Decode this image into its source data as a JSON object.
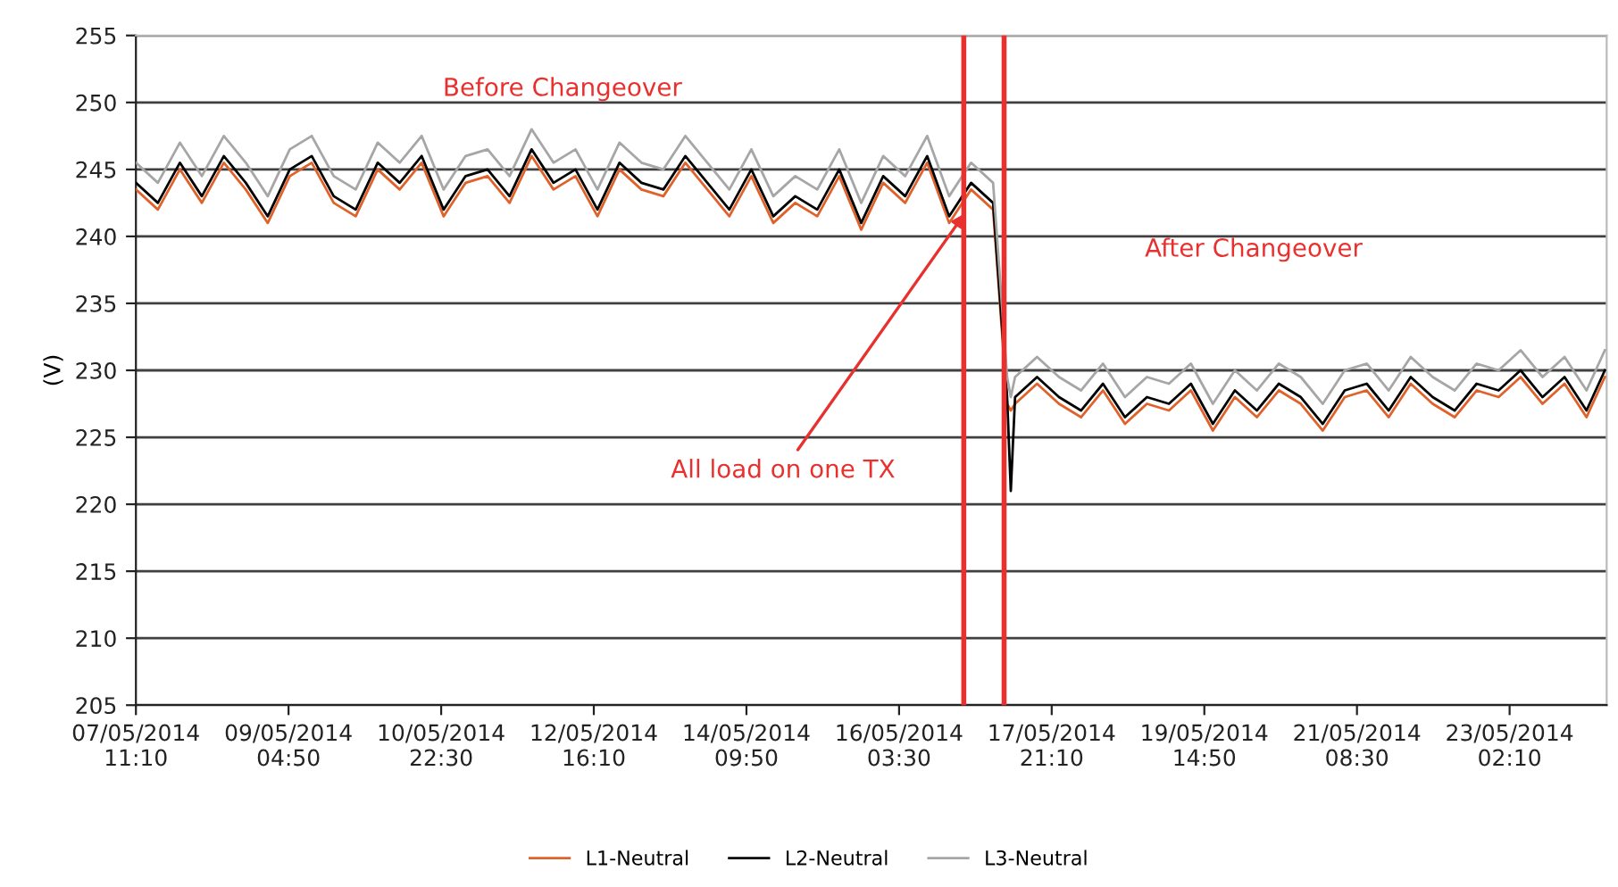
{
  "chart_data": {
    "type": "line",
    "ylabel": "(V)",
    "x": [
      "2014-05-07T11:10",
      "2014-05-07T17:10",
      "2014-05-07T23:10",
      "2014-05-08T05:10",
      "2014-05-08T11:10",
      "2014-05-08T17:10",
      "2014-05-08T23:10",
      "2014-05-09T05:10",
      "2014-05-09T11:10",
      "2014-05-09T17:10",
      "2014-05-09T23:10",
      "2014-05-10T05:10",
      "2014-05-10T11:10",
      "2014-05-10T17:10",
      "2014-05-10T23:10",
      "2014-05-11T05:10",
      "2014-05-11T11:10",
      "2014-05-11T17:10",
      "2014-05-11T23:10",
      "2014-05-12T05:10",
      "2014-05-12T11:10",
      "2014-05-12T17:10",
      "2014-05-12T23:10",
      "2014-05-13T05:10",
      "2014-05-13T11:10",
      "2014-05-13T17:10",
      "2014-05-13T23:10",
      "2014-05-14T05:10",
      "2014-05-14T11:10",
      "2014-05-14T17:10",
      "2014-05-14T23:10",
      "2014-05-15T05:10",
      "2014-05-15T11:10",
      "2014-05-15T17:10",
      "2014-05-15T23:10",
      "2014-05-16T05:10",
      "2014-05-16T11:10",
      "2014-05-16T17:10",
      "2014-05-16T23:10",
      "2014-05-17T05:10",
      "2014-05-17T09:00",
      "2014-05-17T10:00",
      "2014-05-17T11:10",
      "2014-05-17T17:10",
      "2014-05-17T23:10",
      "2014-05-18T05:10",
      "2014-05-18T11:10",
      "2014-05-18T17:10",
      "2014-05-18T23:10",
      "2014-05-19T05:10",
      "2014-05-19T11:10",
      "2014-05-19T17:10",
      "2014-05-19T23:10",
      "2014-05-20T05:10",
      "2014-05-20T11:10",
      "2014-05-20T17:10",
      "2014-05-20T23:10",
      "2014-05-21T05:10",
      "2014-05-21T11:10",
      "2014-05-21T17:10",
      "2014-05-21T23:10",
      "2014-05-22T05:10",
      "2014-05-22T11:10",
      "2014-05-22T17:10",
      "2014-05-22T23:10",
      "2014-05-23T05:10",
      "2014-05-23T11:10",
      "2014-05-23T17:10",
      "2014-05-23T23:10",
      "2014-05-24T04:10"
    ],
    "series": [
      {
        "name": "L1-Neutral",
        "color": "#e0622a",
        "values": [
          243.5,
          242,
          245,
          242.5,
          245.5,
          243.5,
          241,
          244.5,
          245.5,
          242.5,
          241.5,
          245,
          243.5,
          245.5,
          241.5,
          244,
          244.5,
          242.5,
          246,
          243.5,
          244.5,
          241.5,
          245,
          243.5,
          243,
          245.5,
          243.5,
          241.5,
          244.5,
          241,
          242.5,
          241.5,
          244.5,
          240.5,
          244,
          242.5,
          245.5,
          241,
          243.5,
          242,
          227.5,
          227,
          227.5,
          229,
          227.5,
          226.5,
          228.5,
          226,
          227.5,
          227,
          228.5,
          225.5,
          228,
          226.5,
          228.5,
          227.5,
          225.5,
          228,
          228.5,
          226.5,
          229,
          227.5,
          226.5,
          228.5,
          228,
          229.5,
          227.5,
          229,
          226.5,
          229.5
        ]
      },
      {
        "name": "L2-Neutral",
        "color": "#000000",
        "values": [
          244,
          242.5,
          245.5,
          243,
          246,
          244,
          241.5,
          245,
          246,
          243,
          242,
          245.5,
          244,
          246,
          242,
          244.5,
          245,
          243,
          246.5,
          244,
          245,
          242,
          245.5,
          244,
          243.5,
          246,
          244,
          242,
          245,
          241.5,
          243,
          242,
          245,
          241,
          244.5,
          243,
          246,
          241.5,
          244,
          242.5,
          228,
          221,
          228,
          229.5,
          228,
          227,
          229,
          226.5,
          228,
          227.5,
          229,
          226,
          228.5,
          227,
          229,
          228,
          226,
          228.5,
          229,
          227,
          229.5,
          228,
          227,
          229,
          228.5,
          230,
          228,
          229.5,
          227,
          230
        ]
      },
      {
        "name": "L3-Neutral",
        "color": "#a6a6a6",
        "values": [
          245.5,
          244,
          247,
          244.5,
          247.5,
          245.5,
          243,
          246.5,
          247.5,
          244.5,
          243.5,
          247,
          245.5,
          247.5,
          243.5,
          246,
          246.5,
          244.5,
          248,
          245.5,
          246.5,
          243.5,
          247,
          245.5,
          245,
          247.5,
          245.5,
          243.5,
          246.5,
          243,
          244.5,
          243.5,
          246.5,
          242.5,
          246,
          244.5,
          247.5,
          243,
          245.5,
          244,
          229.5,
          228,
          229.5,
          231,
          229.5,
          228.5,
          230.5,
          228,
          229.5,
          229,
          230.5,
          227.5,
          230,
          228.5,
          230.5,
          229.5,
          227.5,
          230,
          230.5,
          228.5,
          231,
          229.5,
          228.5,
          230.5,
          230,
          231.5,
          229.5,
          231,
          228.5,
          231.5
        ]
      }
    ],
    "xlim": [
      "2014-05-07T11:10",
      "2014-05-24T04:40"
    ],
    "xticks": [
      {
        "value": "2014-05-07T11:10",
        "label": "07/05/2014\n11:10"
      },
      {
        "value": "2014-05-09T04:50",
        "label": "09/05/2014\n04:50"
      },
      {
        "value": "2014-05-10T22:30",
        "label": "10/05/2014\n22:30"
      },
      {
        "value": "2014-05-12T16:10",
        "label": "12/05/2014\n16:10"
      },
      {
        "value": "2014-05-14T09:50",
        "label": "14/05/2014\n09:50"
      },
      {
        "value": "2014-05-16T03:30",
        "label": "16/05/2014\n03:30"
      },
      {
        "value": "2014-05-17T21:10",
        "label": "17/05/2014\n21:10"
      },
      {
        "value": "2014-05-19T14:50",
        "label": "19/05/2014\n14:50"
      },
      {
        "value": "2014-05-21T08:30",
        "label": "21/05/2014\n08:30"
      },
      {
        "value": "2014-05-23T02:10",
        "label": "23/05/2014\n02:10"
      }
    ],
    "ylim": [
      205,
      255
    ],
    "yticks": [
      205,
      210,
      215,
      220,
      225,
      230,
      235,
      240,
      245,
      250,
      255
    ],
    "grid": "y",
    "legend": "bottom",
    "marker": "none",
    "line_style": "solid",
    "ref_lines": [
      {
        "axis": "x",
        "value": "2014-05-16T21:10",
        "color": "#e8312f"
      },
      {
        "axis": "x",
        "value": "2014-05-17T08:10",
        "color": "#e8312f"
      }
    ],
    "annotations": [
      "Before Changeover",
      "After Changeover",
      {
        "text": "All load on one TX",
        "x": "2014-05-16T22:10",
        "y": 242
      }
    ]
  }
}
